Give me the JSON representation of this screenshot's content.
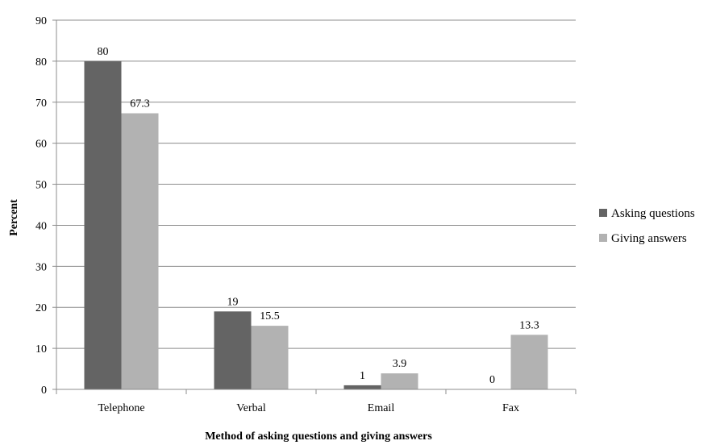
{
  "chart_data": {
    "type": "bar",
    "categories": [
      "Telephone",
      "Verbal",
      "Email",
      "Fax"
    ],
    "series": [
      {
        "name": "Asking questions",
        "values": [
          80,
          19,
          1,
          0
        ],
        "color": "#646464"
      },
      {
        "name": "Giving answers",
        "values": [
          67.3,
          15.5,
          3.9,
          13.3
        ],
        "color": "#b2b2b2"
      }
    ],
    "data_labels": [
      [
        "80",
        "19",
        "1",
        "0"
      ],
      [
        "67.3",
        "15.5",
        "3.9",
        "13.3"
      ]
    ],
    "xlabel": "Method of asking questions and giving answers",
    "ylabel": "Percent",
    "ylim": [
      0,
      90
    ],
    "yticks": [
      0,
      10,
      20,
      30,
      40,
      50,
      60,
      70,
      80,
      90
    ],
    "grid": true,
    "legend_position": "right"
  }
}
